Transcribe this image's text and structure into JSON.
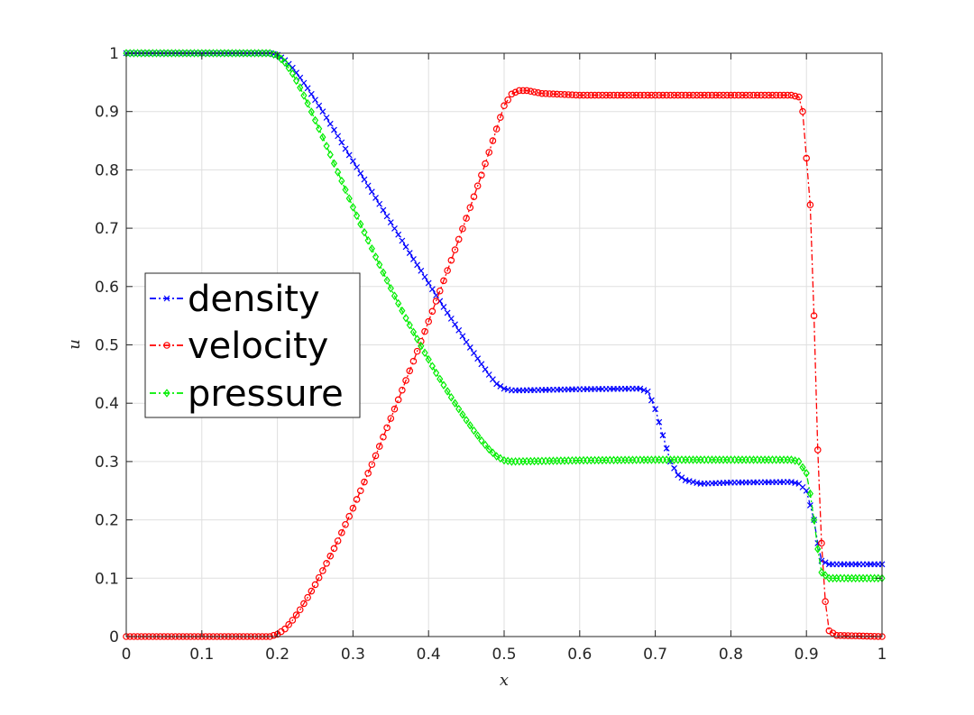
{
  "chart_data": {
    "type": "line",
    "title": "",
    "xlabel": "x",
    "ylabel": "u",
    "xlim": [
      0,
      1
    ],
    "ylim": [
      0,
      1
    ],
    "xticks": [
      "0",
      "0.1",
      "0.2",
      "0.3",
      "0.4",
      "0.5",
      "0.6",
      "0.7",
      "0.8",
      "0.9",
      "1"
    ],
    "yticks": [
      "0",
      "0.1",
      "0.2",
      "0.3",
      "0.4",
      "0.5",
      "0.6",
      "0.7",
      "0.8",
      "0.9",
      "1"
    ],
    "grid": true,
    "legend_position": "middle-left",
    "series": [
      {
        "name": "density",
        "color": "#0000ff",
        "marker": "x",
        "line_style": "dash-dot",
        "points": [
          [
            0,
            1
          ],
          [
            0.19,
            1
          ],
          [
            0.2,
            0.997
          ],
          [
            0.21,
            0.988
          ],
          [
            0.22,
            0.975
          ],
          [
            0.23,
            0.958
          ],
          [
            0.24,
            0.94
          ],
          [
            0.25,
            0.92
          ],
          [
            0.26,
            0.9
          ],
          [
            0.27,
            0.879
          ],
          [
            0.28,
            0.858
          ],
          [
            0.29,
            0.836
          ],
          [
            0.3,
            0.815
          ],
          [
            0.31,
            0.794
          ],
          [
            0.32,
            0.773
          ],
          [
            0.33,
            0.752
          ],
          [
            0.34,
            0.731
          ],
          [
            0.35,
            0.71
          ],
          [
            0.36,
            0.689
          ],
          [
            0.37,
            0.668
          ],
          [
            0.38,
            0.647
          ],
          [
            0.39,
            0.627
          ],
          [
            0.4,
            0.606
          ],
          [
            0.41,
            0.585
          ],
          [
            0.42,
            0.565
          ],
          [
            0.43,
            0.545
          ],
          [
            0.44,
            0.525
          ],
          [
            0.45,
            0.505
          ],
          [
            0.46,
            0.486
          ],
          [
            0.47,
            0.467
          ],
          [
            0.48,
            0.449
          ],
          [
            0.49,
            0.433
          ],
          [
            0.5,
            0.425
          ],
          [
            0.51,
            0.422
          ],
          [
            0.52,
            0.422
          ],
          [
            0.6,
            0.424
          ],
          [
            0.68,
            0.425
          ],
          [
            0.69,
            0.42
          ],
          [
            0.7,
            0.39
          ],
          [
            0.71,
            0.345
          ],
          [
            0.72,
            0.3
          ],
          [
            0.73,
            0.277
          ],
          [
            0.74,
            0.268
          ],
          [
            0.76,
            0.262
          ],
          [
            0.8,
            0.264
          ],
          [
            0.88,
            0.265
          ],
          [
            0.89,
            0.262
          ],
          [
            0.9,
            0.25
          ],
          [
            0.91,
            0.2
          ],
          [
            0.915,
            0.16
          ],
          [
            0.92,
            0.13
          ],
          [
            0.93,
            0.124
          ],
          [
            1,
            0.124
          ]
        ]
      },
      {
        "name": "velocity",
        "color": "#ff0000",
        "marker": "o",
        "line_style": "dash-dot",
        "points": [
          [
            0,
            0
          ],
          [
            0.19,
            0
          ],
          [
            0.2,
            0.004
          ],
          [
            0.21,
            0.013
          ],
          [
            0.22,
            0.028
          ],
          [
            0.23,
            0.046
          ],
          [
            0.24,
            0.067
          ],
          [
            0.25,
            0.089
          ],
          [
            0.26,
            0.113
          ],
          [
            0.27,
            0.138
          ],
          [
            0.28,
            0.164
          ],
          [
            0.29,
            0.192
          ],
          [
            0.3,
            0.22
          ],
          [
            0.31,
            0.25
          ],
          [
            0.32,
            0.28
          ],
          [
            0.33,
            0.31
          ],
          [
            0.34,
            0.342
          ],
          [
            0.35,
            0.374
          ],
          [
            0.36,
            0.406
          ],
          [
            0.37,
            0.439
          ],
          [
            0.38,
            0.472
          ],
          [
            0.39,
            0.506
          ],
          [
            0.4,
            0.54
          ],
          [
            0.41,
            0.575
          ],
          [
            0.42,
            0.61
          ],
          [
            0.43,
            0.645
          ],
          [
            0.44,
            0.681
          ],
          [
            0.45,
            0.717
          ],
          [
            0.46,
            0.754
          ],
          [
            0.47,
            0.791
          ],
          [
            0.48,
            0.83
          ],
          [
            0.49,
            0.87
          ],
          [
            0.5,
            0.91
          ],
          [
            0.51,
            0.93
          ],
          [
            0.52,
            0.936
          ],
          [
            0.53,
            0.936
          ],
          [
            0.55,
            0.931
          ],
          [
            0.6,
            0.928
          ],
          [
            0.7,
            0.928
          ],
          [
            0.8,
            0.928
          ],
          [
            0.88,
            0.928
          ],
          [
            0.89,
            0.925
          ],
          [
            0.895,
            0.9
          ],
          [
            0.9,
            0.82
          ],
          [
            0.905,
            0.74
          ],
          [
            0.91,
            0.55
          ],
          [
            0.915,
            0.32
          ],
          [
            0.92,
            0.16
          ],
          [
            0.925,
            0.06
          ],
          [
            0.93,
            0.01
          ],
          [
            0.94,
            0.002
          ],
          [
            1,
            0
          ]
        ]
      },
      {
        "name": "pressure",
        "color": "#00ee00",
        "marker": "d",
        "line_style": "dash-dot",
        "points": [
          [
            0,
            1
          ],
          [
            0.19,
            1
          ],
          [
            0.2,
            0.996
          ],
          [
            0.21,
            0.984
          ],
          [
            0.22,
            0.965
          ],
          [
            0.23,
            0.941
          ],
          [
            0.24,
            0.914
          ],
          [
            0.25,
            0.885
          ],
          [
            0.26,
            0.856
          ],
          [
            0.27,
            0.826
          ],
          [
            0.28,
            0.796
          ],
          [
            0.29,
            0.766
          ],
          [
            0.3,
            0.736
          ],
          [
            0.31,
            0.707
          ],
          [
            0.32,
            0.679
          ],
          [
            0.33,
            0.651
          ],
          [
            0.34,
            0.624
          ],
          [
            0.35,
            0.597
          ],
          [
            0.36,
            0.571
          ],
          [
            0.37,
            0.546
          ],
          [
            0.38,
            0.522
          ],
          [
            0.39,
            0.498
          ],
          [
            0.4,
            0.475
          ],
          [
            0.41,
            0.452
          ],
          [
            0.42,
            0.431
          ],
          [
            0.43,
            0.41
          ],
          [
            0.44,
            0.39
          ],
          [
            0.45,
            0.371
          ],
          [
            0.46,
            0.353
          ],
          [
            0.47,
            0.336
          ],
          [
            0.48,
            0.321
          ],
          [
            0.49,
            0.309
          ],
          [
            0.5,
            0.302
          ],
          [
            0.51,
            0.3
          ],
          [
            0.6,
            0.302
          ],
          [
            0.7,
            0.303
          ],
          [
            0.8,
            0.303
          ],
          [
            0.88,
            0.303
          ],
          [
            0.89,
            0.3
          ],
          [
            0.9,
            0.28
          ],
          [
            0.905,
            0.245
          ],
          [
            0.91,
            0.2
          ],
          [
            0.915,
            0.15
          ],
          [
            0.92,
            0.11
          ],
          [
            0.93,
            0.1
          ],
          [
            1,
            0.1
          ]
        ]
      }
    ]
  }
}
